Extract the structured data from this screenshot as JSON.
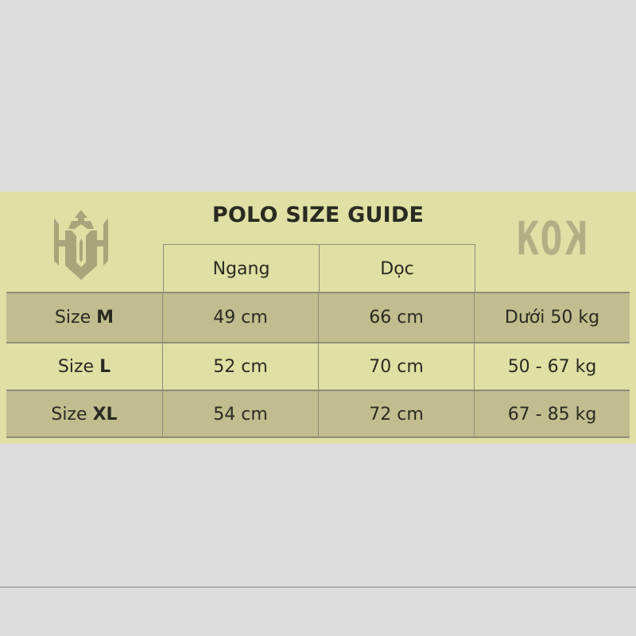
{
  "title": "POLO SIZE GUIDE",
  "logo_right": {
    "text": "KOK",
    "color": "#b3ae84"
  },
  "logo_left": {
    "text": "KOK monogram",
    "color": "#a9a47a"
  },
  "columns": [
    "",
    "Ngang",
    "Dọc",
    ""
  ],
  "rows": [
    {
      "prefix": "Size",
      "size": "M",
      "ngang": "49 cm",
      "doc": "66 cm",
      "weight": "Dưới 50 kg"
    },
    {
      "prefix": "Size",
      "size": "L",
      "ngang": "52 cm",
      "doc": "70 cm",
      "weight": "50 - 67 kg"
    },
    {
      "prefix": "Size",
      "size": "XL",
      "ngang": "54 cm",
      "doc": "72 cm",
      "weight": "67 - 85 kg"
    }
  ],
  "colors": {
    "band": "#e0dfa4",
    "row_dark": "#c2bd8f",
    "background": "#dcdcdc"
  }
}
